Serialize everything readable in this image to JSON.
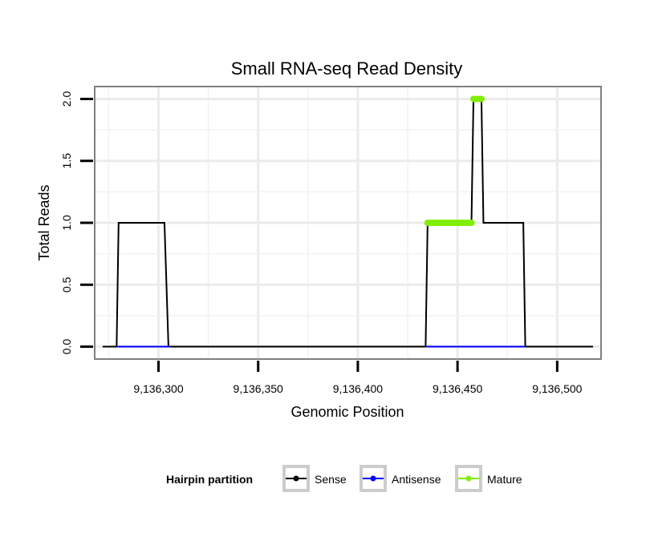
{
  "chart_data": {
    "type": "line",
    "title": "Small RNA-seq Read Density",
    "xlabel": "Genomic Position",
    "ylabel": "Total Reads",
    "xlim": [
      9136268,
      9136522
    ],
    "ylim": [
      -0.1,
      2.1
    ],
    "x_ticks": [
      9136300,
      9136350,
      9136400,
      9136450,
      9136500
    ],
    "x_tick_labels": [
      "9,136,300",
      "9,136,350",
      "9,136,400",
      "9,136,450",
      "9,136,500"
    ],
    "y_ticks": [
      0,
      0.5,
      1,
      1.5,
      2
    ],
    "y_tick_labels": [
      "0.0",
      "0.5",
      "1.0",
      "1.5",
      "2.0"
    ],
    "grid": true,
    "legend": {
      "title": "Hairpin partition",
      "position": "bottom",
      "entries": [
        "Sense",
        "Antisense",
        "Mature"
      ]
    },
    "series": [
      {
        "name": "Sense",
        "color": "#000000",
        "style": "line",
        "x": [
          9136272,
          9136279,
          9136280,
          9136303,
          9136305,
          9136434,
          9136435,
          9136457,
          9136458,
          9136462,
          9136463,
          9136483,
          9136484,
          9136518
        ],
        "y": [
          0,
          0,
          1,
          1,
          0,
          0,
          1,
          1,
          2,
          2,
          1,
          1,
          0,
          0
        ]
      },
      {
        "name": "Antisense",
        "color": "#0000ff",
        "style": "line",
        "x": [
          9136279,
          9136306,
          9136434,
          9136484
        ],
        "y": [
          0,
          0,
          0,
          0
        ],
        "segments": [
          [
            0,
            1
          ],
          [
            2,
            3
          ]
        ]
      },
      {
        "name": "Mature",
        "color": "#80ee00",
        "style": "points",
        "x": [
          9136435,
          9136436,
          9136437,
          9136438,
          9136439,
          9136440,
          9136441,
          9136442,
          9136443,
          9136444,
          9136445,
          9136446,
          9136447,
          9136448,
          9136449,
          9136450,
          9136451,
          9136452,
          9136453,
          9136454,
          9136455,
          9136456,
          9136457,
          9136458,
          9136459,
          9136460,
          9136461,
          9136462
        ],
        "y": [
          1,
          1,
          1,
          1,
          1,
          1,
          1,
          1,
          1,
          1,
          1,
          1,
          1,
          1,
          1,
          1,
          1,
          1,
          1,
          1,
          1,
          1,
          1,
          2,
          2,
          2,
          2,
          2
        ]
      }
    ]
  }
}
